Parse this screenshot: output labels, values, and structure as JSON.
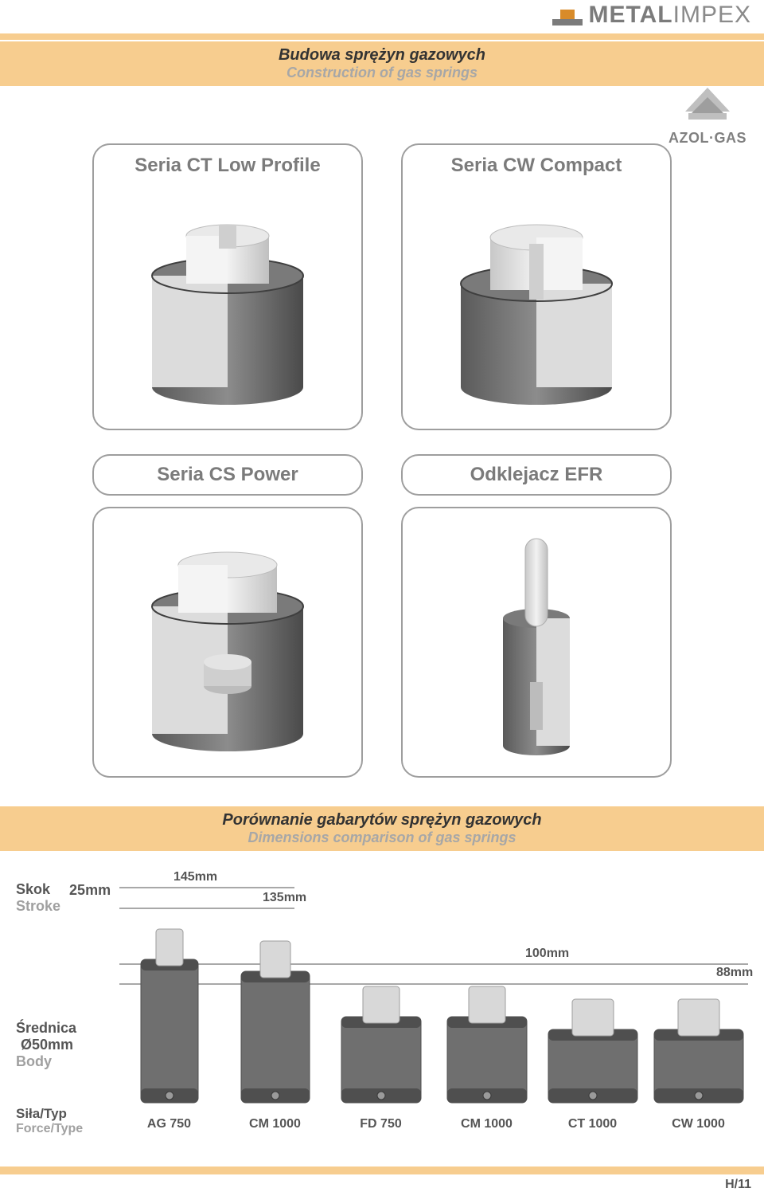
{
  "brand": {
    "name_strong": "METAL",
    "name_light": "IMPEX",
    "logo_fill": "#d88b2a",
    "logo_stroke": "#7b7b7b"
  },
  "section1": {
    "title_pl": "Budowa sprężyn gazowych",
    "title_en": "Construction of gas springs",
    "band_bg": "#f7cd8f",
    "title_color": "#333333",
    "subtitle_color": "#a7a7a7"
  },
  "azol": {
    "text": "AZOL·GAS",
    "text_color": "#808080"
  },
  "cards": [
    {
      "title": "Seria CT Low Profile"
    },
    {
      "title": "Seria CW Compact"
    },
    {
      "title": "Seria CS Power"
    },
    {
      "title": "Odklejacz EFR"
    }
  ],
  "section2": {
    "title_pl": "Porównanie gabarytów sprężyn gazowych",
    "title_en": "Dimensions comparison of gas springs",
    "band_bg": "#f7cd8f"
  },
  "compare": {
    "stroke_label_pl": "Skok",
    "stroke_label_en": "Stroke",
    "stroke_value": "25mm",
    "dia_label_pl": "Średnica",
    "dia_label_en": "Body",
    "dia_value": "Ø50mm",
    "dims": {
      "h145": "145mm",
      "h135": "135mm",
      "h100": "100mm",
      "h88": "88mm"
    },
    "springs": [
      {
        "name": "AG 750",
        "body_h": 180,
        "body_w": 72,
        "rod_h": 40,
        "rod_w": 34
      },
      {
        "name": "CM 1000",
        "body_h": 165,
        "body_w": 86,
        "rod_h": 40,
        "rod_w": 38
      },
      {
        "name": "FD 750",
        "body_h": 108,
        "body_w": 100,
        "rod_h": 40,
        "rod_w": 46
      },
      {
        "name": "CM 1000",
        "body_h": 108,
        "body_w": 100,
        "rod_h": 40,
        "rod_w": 46
      },
      {
        "name": "CT 1000",
        "body_h": 92,
        "body_w": 112,
        "rod_h": 40,
        "rod_w": 52
      },
      {
        "name": "CW 1000",
        "body_h": 92,
        "body_w": 112,
        "rod_h": 40,
        "rod_w": 52
      }
    ],
    "force_label_pl": "Siła/Typ",
    "force_label_en": "Force/Type",
    "guide_color": "#8c8c8c",
    "body_fill": "#6f6f6f",
    "body_dark": "#4f4f4f",
    "rod_fill": "#d8d8d8",
    "rod_edge": "#9e9e9e"
  },
  "footer": "H/11"
}
